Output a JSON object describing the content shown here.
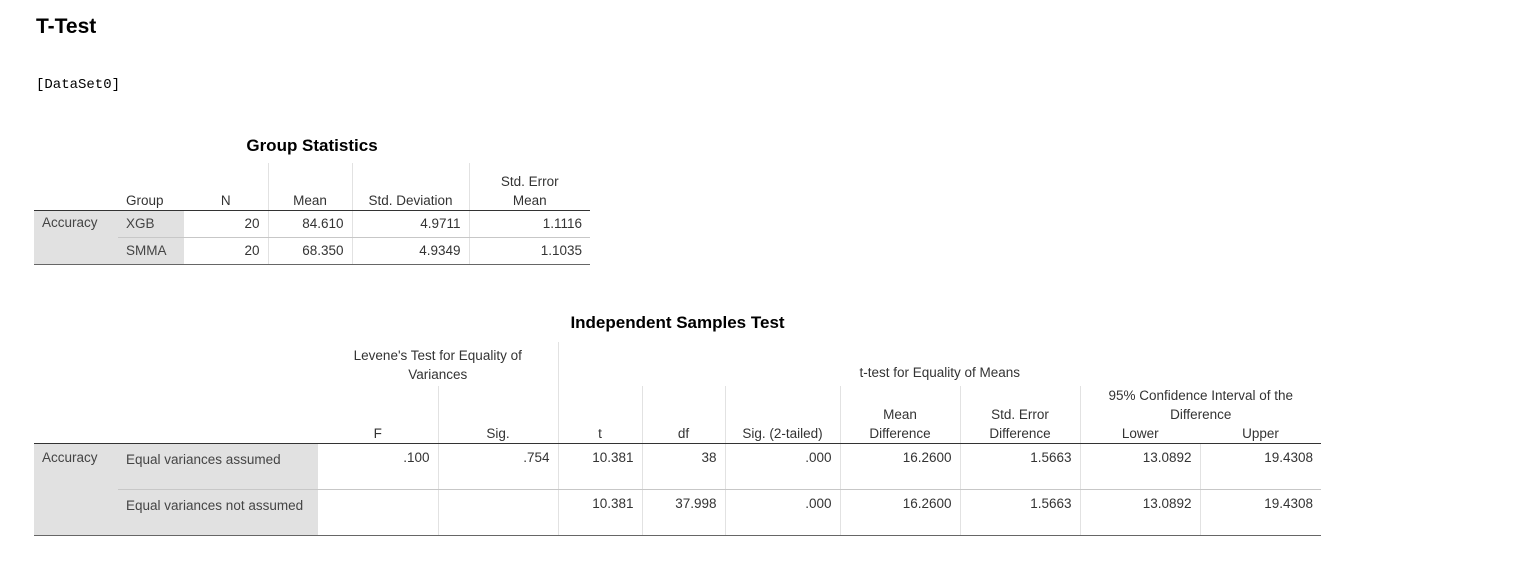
{
  "page": {
    "title": "T-Test",
    "dataset": "[DataSet0]"
  },
  "group_statistics": {
    "title": "Group Statistics",
    "columns": {
      "group": "Group",
      "n": "N",
      "mean": "Mean",
      "std_dev": "Std. Deviation",
      "std_err_1": "Std. Error",
      "std_err_2": "Mean"
    },
    "row_label": "Accuracy",
    "rows": [
      {
        "group": "XGB",
        "n": "20",
        "mean": "84.610",
        "std_dev": "4.9711",
        "std_err": "1.1116"
      },
      {
        "group": "SMMA",
        "n": "20",
        "mean": "68.350",
        "std_dev": "4.9349",
        "std_err": "1.1035"
      }
    ]
  },
  "independent_samples_test": {
    "title": "Independent Samples Test",
    "levene_header": "Levene's Test for Equality of Variances",
    "ttest_header": "t-test for Equality of Means",
    "ci_header": "95% Confidence Interval of the Difference",
    "columns": {
      "f": "F",
      "sig": "Sig.",
      "t": "t",
      "df": "df",
      "sig2": "Sig. (2-tailed)",
      "mean_diff_1": "Mean",
      "mean_diff_2": "Difference",
      "se_diff_1": "Std. Error",
      "se_diff_2": "Difference",
      "lower": "Lower",
      "upper": "Upper"
    },
    "row_label": "Accuracy",
    "rows": [
      {
        "label": "Equal variances assumed",
        "f": ".100",
        "sig": ".754",
        "t": "10.381",
        "df": "38",
        "sig2": ".000",
        "mean_diff": "16.2600",
        "se_diff": "1.5663",
        "lower": "13.0892",
        "upper": "19.4308"
      },
      {
        "label": "Equal variances not assumed",
        "f": "",
        "sig": "",
        "t": "10.381",
        "df": "37.998",
        "sig2": ".000",
        "mean_diff": "16.2600",
        "se_diff": "1.5663",
        "lower": "13.0892",
        "upper": "19.4308"
      }
    ]
  },
  "colors": {
    "row_label_bg": "#e1e1e1",
    "text": "#333333",
    "title": "#000000"
  }
}
